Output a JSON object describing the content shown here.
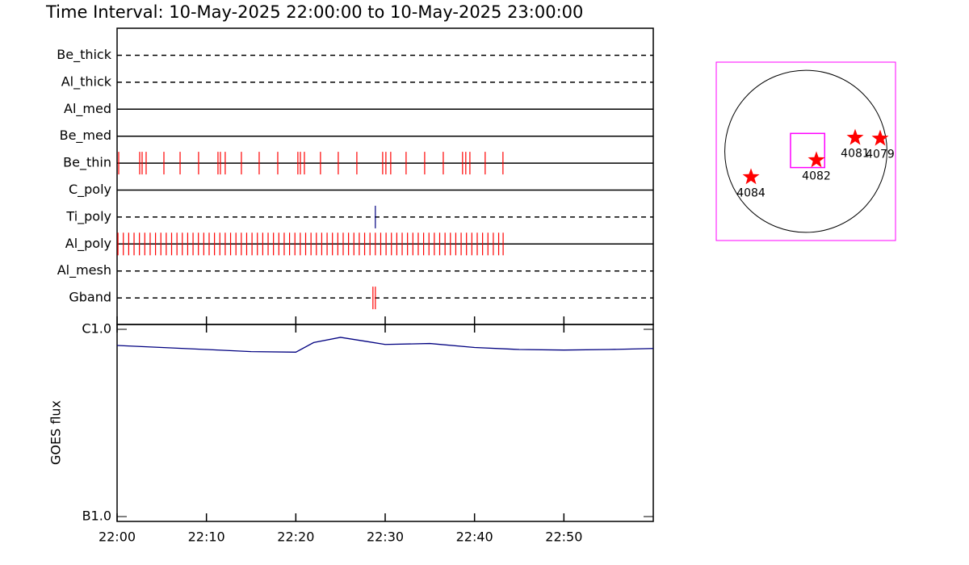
{
  "chart_data": [
    {
      "type": "timeline",
      "title": "Time Interval: 10-May-2025 22:00:00 to 10-May-2025 23:00:00",
      "xlim": [
        0,
        60
      ],
      "rows": [
        {
          "name": "Be_thick",
          "line": "dashed",
          "color": "#ff0000",
          "times": []
        },
        {
          "name": "Al_thick",
          "line": "dashed",
          "color": "#ff0000",
          "times": []
        },
        {
          "name": "Al_med",
          "line": "solid",
          "color": "#ff0000",
          "times": []
        },
        {
          "name": "Be_med",
          "line": "solid",
          "color": "#ff0000",
          "times": []
        },
        {
          "name": "Be_thin",
          "line": "solid",
          "color": "#ff0000",
          "times": [
            0.18,
            2.53,
            2.8,
            3.25,
            5.24,
            7.05,
            9.12,
            11.29,
            11.56,
            12.1,
            13.91,
            15.9,
            17.98,
            20.23,
            20.51,
            20.96,
            22.76,
            24.75,
            26.83,
            29.72,
            30.08,
            30.62,
            32.34,
            34.42,
            36.5,
            38.66,
            39.02,
            39.48,
            41.19,
            43.18
          ]
        },
        {
          "name": "C_poly",
          "line": "solid",
          "color": "#ff0000",
          "times": []
        },
        {
          "name": "Ti_poly",
          "line": "dashed",
          "color": "#000080",
          "times": [
            28.9
          ]
        },
        {
          "name": "Al_poly",
          "line": "solid",
          "color": "#ff0000",
          "times": [
            0.1,
            0.7,
            1.3,
            1.9,
            2.5,
            3.1,
            3.7,
            4.3,
            4.9,
            5.5,
            6.1,
            6.7,
            7.3,
            7.9,
            8.5,
            9.1,
            9.7,
            10.3,
            10.9,
            11.5,
            12.1,
            12.7,
            13.3,
            13.9,
            14.5,
            15.1,
            15.7,
            16.3,
            16.9,
            17.5,
            18.1,
            18.7,
            19.3,
            19.9,
            20.5,
            21.1,
            21.7,
            22.3,
            22.9,
            23.5,
            24.1,
            24.7,
            25.3,
            25.9,
            26.5,
            27.1,
            27.7,
            28.3,
            28.9,
            29.5,
            30.1,
            30.7,
            31.3,
            31.9,
            32.5,
            33.1,
            33.7,
            34.3,
            34.9,
            35.5,
            36.1,
            36.7,
            37.3,
            37.9,
            38.5,
            39.1,
            39.7,
            40.3,
            40.9,
            41.5,
            42.1,
            42.7,
            43.2
          ]
        },
        {
          "name": "Al_mesh",
          "line": "dashed",
          "color": "#ff0000",
          "times": []
        },
        {
          "name": "Gband",
          "line": "dashed",
          "color": "#ff0000",
          "times": [
            28.63,
            28.9
          ]
        }
      ]
    },
    {
      "type": "line",
      "ylabel": "GOES flux",
      "log": true,
      "xlim": [
        0,
        60
      ],
      "xticks": [
        {
          "value": 0,
          "label": "22:00"
        },
        {
          "value": 10,
          "label": "22:10"
        },
        {
          "value": 20,
          "label": "22:20"
        },
        {
          "value": 30,
          "label": "22:30"
        },
        {
          "value": 40,
          "label": "22:40"
        },
        {
          "value": 50,
          "label": "22:50"
        }
      ],
      "ylim": [
        1e-07,
        1e-06
      ],
      "yticks": [
        {
          "value": 1e-07,
          "label": "B1.0"
        },
        {
          "value": 1e-06,
          "label": "C1.0"
        }
      ],
      "color": "#000080",
      "x": [
        0,
        5,
        10,
        15,
        20,
        22,
        25,
        28,
        30,
        35,
        40,
        45,
        50,
        55,
        60
      ],
      "values": [
        8.2e-07,
        8e-07,
        7.8e-07,
        7.6e-07,
        7.55e-07,
        8.5e-07,
        9.06e-07,
        8.6e-07,
        8.3e-07,
        8.4e-07,
        8e-07,
        7.8e-07,
        7.75e-07,
        7.8e-07,
        7.9e-07
      ]
    },
    {
      "type": "map",
      "xlim": [
        -1050,
        1050
      ],
      "ylim": [
        -1050,
        1050
      ],
      "radius": 950,
      "color": "#ff00ff",
      "marker_color": "#ff0000",
      "fov": {
        "x": 20,
        "y": 10,
        "width": 400,
        "height": 400
      },
      "regions": [
        {
          "label": "4084",
          "x": -643,
          "y": -303
        },
        {
          "label": "4082",
          "x": 123,
          "y": -104
        },
        {
          "label": "4081",
          "x": 577,
          "y": 161
        },
        {
          "label": "4079",
          "x": 870,
          "y": 151
        }
      ]
    }
  ]
}
